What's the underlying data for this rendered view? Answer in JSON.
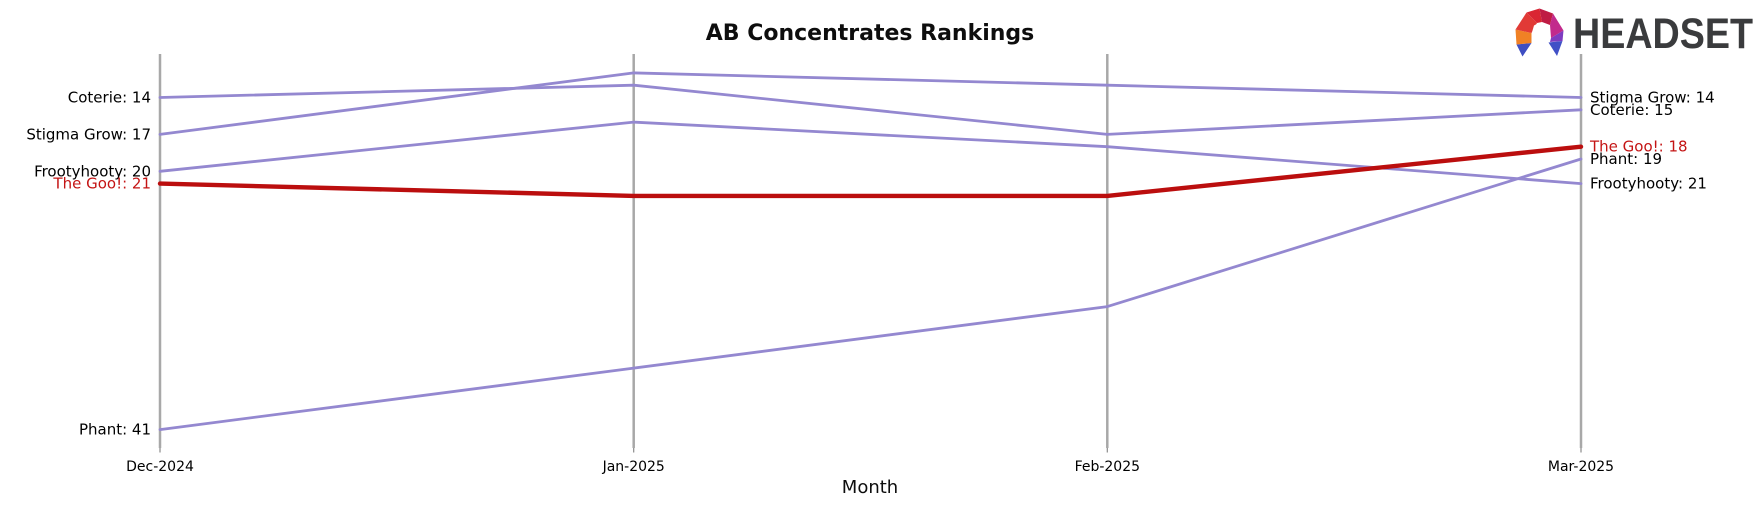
{
  "page": {
    "title": "AB Concentrates Rankings",
    "x_axis_title": "Month"
  },
  "logo": {
    "text": "HEADSET",
    "mark": "headset-faceted-arch"
  },
  "colors": {
    "series_default": "#9488d0",
    "series_highlight": "#bb0e0e",
    "label_highlight": "#c41414",
    "axis_line": "#a8a8a8",
    "tick_mark": "#8a8a8a",
    "text": "#000000",
    "logo_text": "#3a3b3d"
  },
  "chart_data": {
    "type": "line",
    "subtype": "bump-ranking",
    "title": "AB Concentrates Rankings",
    "xlabel": "Month",
    "ylabel": "",
    "x": [
      "Dec-2024",
      "Jan-2025",
      "Feb-2025",
      "Mar-2025"
    ],
    "y_meaning": "sales rank (lower number = better, plotted higher)",
    "y_inverted": true,
    "grid": "vertical-month-lines",
    "legend": "none",
    "series": [
      {
        "name": "Coterie",
        "values": [
          14,
          13,
          17,
          15
        ],
        "highlight": false
      },
      {
        "name": "Stigma Grow",
        "values": [
          17,
          12,
          13,
          14
        ],
        "highlight": false
      },
      {
        "name": "Frootyhooty",
        "values": [
          20,
          16,
          18,
          21
        ],
        "highlight": false
      },
      {
        "name": "The Goo!",
        "values": [
          21,
          22,
          22,
          18
        ],
        "highlight": true
      },
      {
        "name": "Phant",
        "values": [
          41,
          36,
          31,
          19
        ],
        "highlight": false
      }
    ],
    "left_labels": [
      "Coterie: 14",
      "Stigma Grow: 17",
      "Frootyhooty: 20",
      "The Goo!: 21",
      "Phant: 41"
    ],
    "right_labels": [
      "Stigma Grow: 14",
      "Coterie: 15",
      "The Goo!: 18",
      "Phant: 19",
      "Frootyhooty: 21"
    ]
  }
}
